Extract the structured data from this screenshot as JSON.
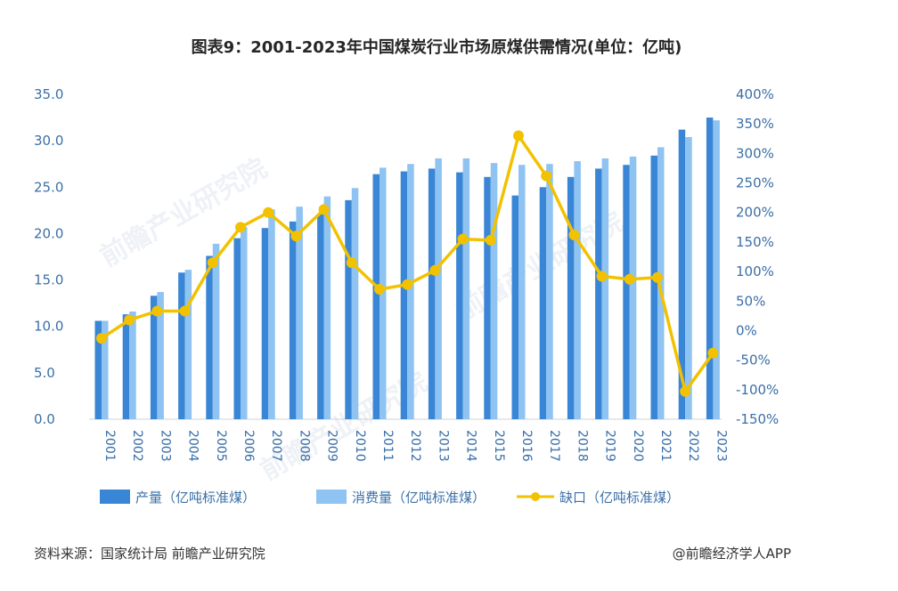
{
  "title": "图表9：2001-2023年中国煤炭行业市场原煤供需情况(单位：亿吨)",
  "source": "资料来源：国家统计局 前瞻产业研究院",
  "credit": "@前瞻经济学人APP",
  "watermark": "前瞻产业研究院",
  "colors": {
    "production": "#3a86d6",
    "consumption": "#8ec3f2",
    "gap": "#f2c200",
    "axis_text": "#3a6fa8"
  },
  "chart_data": {
    "type": "bar",
    "categories": [
      "2001",
      "2002",
      "2003",
      "2004",
      "2005",
      "2006",
      "2007",
      "2008",
      "2009",
      "2010",
      "2011",
      "2012",
      "2013",
      "2014",
      "2015",
      "2016",
      "2017",
      "2018",
      "2019",
      "2020",
      "2021",
      "2022",
      "2023"
    ],
    "series": [
      {
        "name": "产量（亿吨标准煤）",
        "type": "bar",
        "axis": "left",
        "values": [
          10.6,
          11.3,
          13.3,
          15.8,
          17.6,
          19.5,
          20.6,
          21.3,
          22.1,
          23.6,
          26.4,
          26.7,
          27.0,
          26.6,
          26.1,
          24.1,
          25.0,
          26.1,
          27.0,
          27.4,
          28.4,
          31.2,
          32.5
        ]
      },
      {
        "name": "消费量（亿吨标准煤）",
        "type": "bar",
        "axis": "left",
        "values": [
          10.6,
          11.6,
          13.7,
          16.1,
          18.9,
          20.7,
          22.6,
          22.9,
          24.0,
          24.9,
          27.1,
          27.5,
          28.1,
          28.1,
          27.6,
          27.4,
          27.5,
          27.8,
          28.1,
          28.3,
          29.3,
          30.4,
          32.2
        ]
      },
      {
        "name": "缺口（亿吨标准煤）",
        "type": "line",
        "axis": "right",
        "values": [
          -13,
          18,
          33,
          33,
          115,
          175,
          200,
          160,
          205,
          115,
          70,
          78,
          102,
          155,
          153,
          330,
          262,
          162,
          92,
          87,
          90,
          -103,
          -38
        ]
      }
    ],
    "yleft": {
      "min": 0,
      "max": 35,
      "step": 5,
      "ticks": [
        "0.0",
        "5.0",
        "10.0",
        "15.0",
        "20.0",
        "25.0",
        "30.0",
        "35.0"
      ]
    },
    "yright": {
      "min": -150,
      "max": 400,
      "step": 50,
      "ticks": [
        "-150%",
        "-100%",
        "-50%",
        "0%",
        "50%",
        "100%",
        "150%",
        "200%",
        "250%",
        "300%",
        "350%",
        "400%"
      ]
    },
    "grid": false,
    "legend_position": "bottom"
  }
}
